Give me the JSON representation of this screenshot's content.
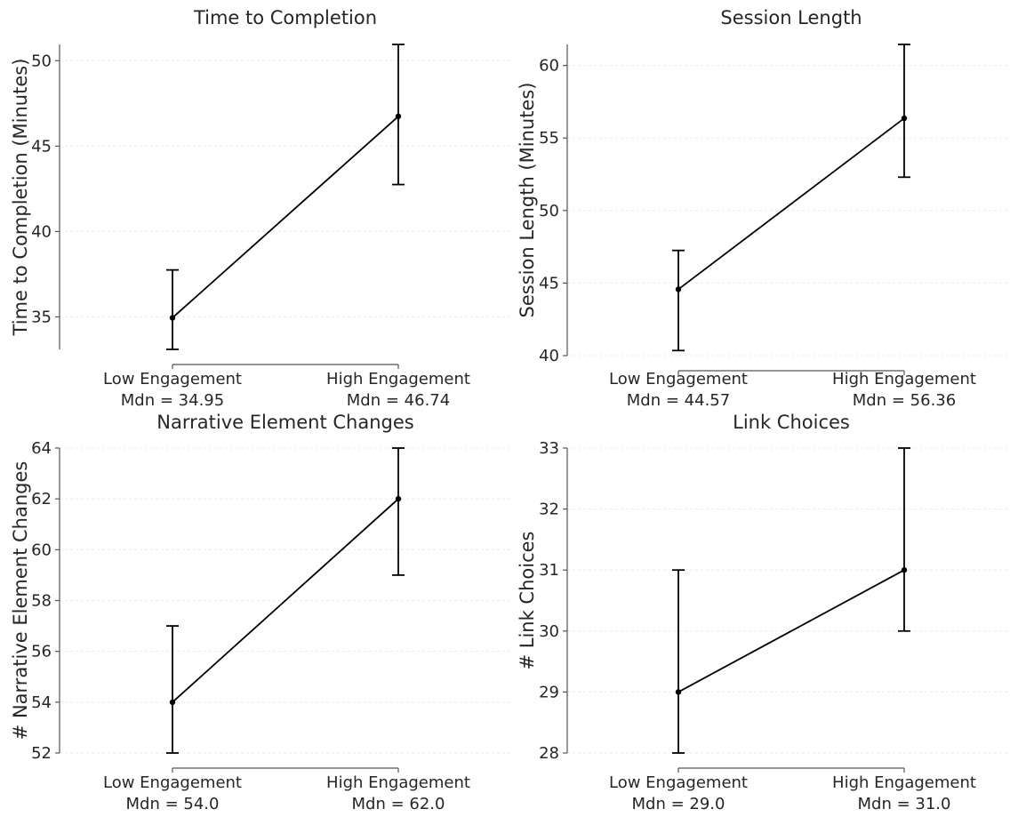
{
  "chart_data": [
    {
      "type": "line",
      "title": "Time to Completion",
      "ylabel": "Time to Completion (Minutes)",
      "xlabel": "",
      "categories": [
        "Low Engagement",
        "High Engagement"
      ],
      "category_sublabels": [
        "Mdn = 34.95",
        "Mdn = 46.74"
      ],
      "values": [
        34.95,
        46.74
      ],
      "error_low": [
        33.1,
        42.75
      ],
      "error_high": [
        37.75,
        50.95
      ],
      "ylim": [
        33.1,
        50.95
      ],
      "yticks": [
        35,
        40,
        45,
        50
      ],
      "grid": true
    },
    {
      "type": "line",
      "title": "Session Length",
      "ylabel": "Session Length (Minutes)",
      "xlabel": "",
      "categories": [
        "Low Engagement",
        "High Engagement"
      ],
      "category_sublabels": [
        "Mdn = 44.57",
        "Mdn = 56.36"
      ],
      "values": [
        44.57,
        56.36
      ],
      "error_low": [
        40.35,
        52.3
      ],
      "error_high": [
        47.25,
        61.45
      ],
      "ylim": [
        40.0,
        61.45
      ],
      "yticks": [
        40,
        45,
        50,
        55,
        60
      ],
      "grid": true
    },
    {
      "type": "line",
      "title": "Narrative Element Changes",
      "ylabel": "# Narrative Element Changes",
      "xlabel": "",
      "categories": [
        "Low Engagement",
        "High Engagement"
      ],
      "category_sublabels": [
        "Mdn = 54.0",
        "Mdn = 62.0"
      ],
      "values": [
        54.0,
        62.0
      ],
      "error_low": [
        52.0,
        59.0
      ],
      "error_high": [
        57.0,
        64.0
      ],
      "ylim": [
        52.0,
        64.0
      ],
      "yticks": [
        52,
        54,
        56,
        58,
        60,
        62,
        64
      ],
      "grid": true
    },
    {
      "type": "line",
      "title": "Link Choices",
      "ylabel": "# Link Choices",
      "xlabel": "",
      "categories": [
        "Low Engagement",
        "High Engagement"
      ],
      "category_sublabels": [
        "Mdn = 29.0",
        "Mdn = 31.0"
      ],
      "values": [
        29.0,
        31.0
      ],
      "error_low": [
        28.0,
        30.0
      ],
      "error_high": [
        31.0,
        33.0
      ],
      "ylim": [
        28.0,
        33.0
      ],
      "yticks": [
        28,
        29,
        30,
        31,
        32,
        33
      ],
      "grid": true
    }
  ]
}
